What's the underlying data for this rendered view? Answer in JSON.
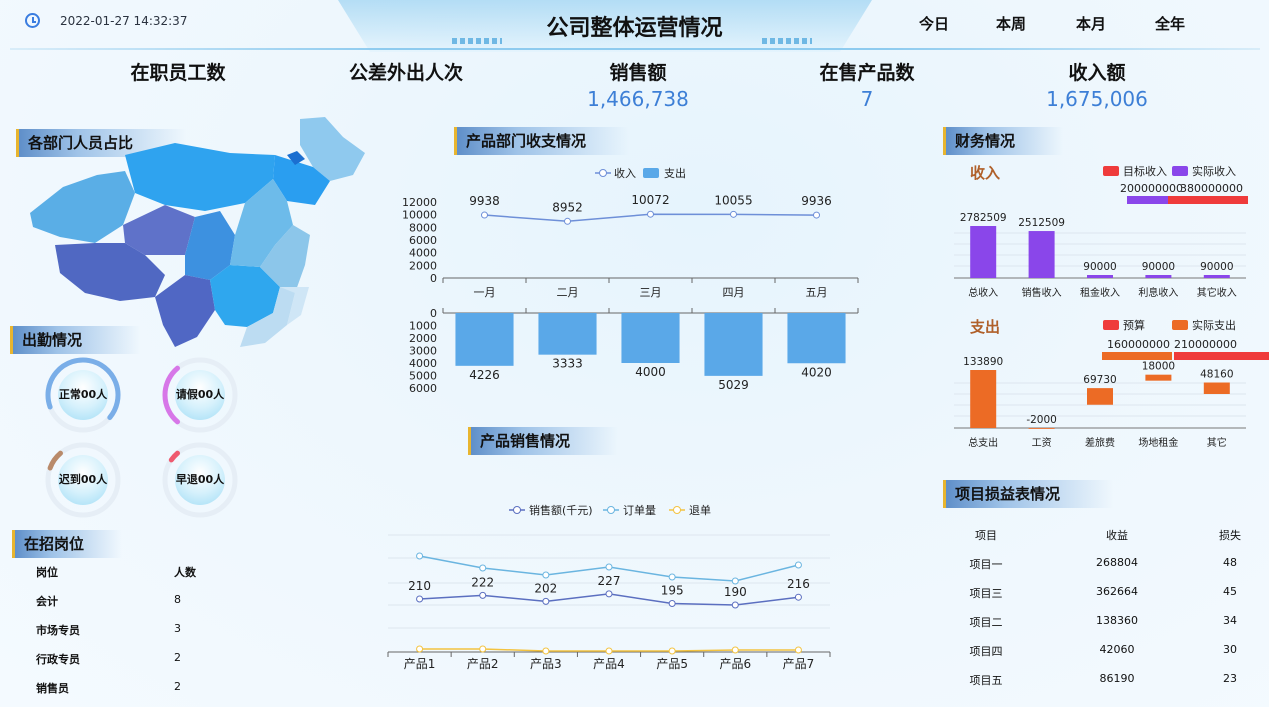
{
  "header": {
    "datetime": "2022-01-27 14:32:37",
    "title": "公司整体运营情况",
    "periods": [
      "今日",
      "本周",
      "本月",
      "全年"
    ]
  },
  "kpis": [
    {
      "label": "在职员工数",
      "value": ""
    },
    {
      "label": "公差外出人次",
      "value": ""
    },
    {
      "label": "销售额",
      "value": "1,466,738"
    },
    {
      "label": "在售产品数",
      "value": "7"
    },
    {
      "label": "收入额",
      "value": "1,675,006"
    }
  ],
  "sections": {
    "dept_ratio": "各部门人员占比",
    "attendance": "出勤情况",
    "recruit": "在招岗位",
    "dept_finance": "产品部门收支情况",
    "product_sales": "产品销售情况",
    "finance": "财务情况",
    "project_pl": "项目损益表情况"
  },
  "colors": {
    "accent": "#3d7fd6",
    "income_line": "#6e8fd8",
    "expense_bar": "#5aa8e8",
    "purple": "#8a46ea",
    "orange": "#ec6b25",
    "red": "#ef3b3b"
  },
  "attendance": [
    {
      "label": "正常00人",
      "color": "#7aaee8"
    },
    {
      "label": "请假00人",
      "color": "#d777e8"
    },
    {
      "label": "迟到00人",
      "color": "#b98a6a"
    },
    {
      "label": "早退00人",
      "color": "#ef5a6f"
    }
  ],
  "recruit": {
    "headers": [
      "岗位",
      "人数"
    ],
    "rows": [
      [
        "会计",
        "8"
      ],
      [
        "市场专员",
        "3"
      ],
      [
        "行政专员",
        "2"
      ],
      [
        "销售员",
        "2"
      ]
    ]
  },
  "chart_data": [
    {
      "id": "dept_income",
      "type": "line",
      "categories": [
        "一月",
        "二月",
        "三月",
        "四月",
        "五月"
      ],
      "series": [
        {
          "name": "收入",
          "values": [
            9938,
            8952,
            10072,
            10055,
            9936
          ]
        }
      ],
      "legend": [
        "收入",
        "支出"
      ],
      "yticks": [
        "12000",
        "10000",
        "8000",
        "6000",
        "4000",
        "2000",
        "0"
      ],
      "ylim": [
        0,
        12000
      ]
    },
    {
      "id": "dept_expense",
      "type": "bar",
      "categories": [
        "一月",
        "二月",
        "三月",
        "四月",
        "五月"
      ],
      "series": [
        {
          "name": "支出",
          "values": [
            4226,
            3333,
            4000,
            5029,
            4020
          ]
        }
      ],
      "yticks": [
        "0",
        "1000",
        "2000",
        "3000",
        "4000",
        "5000",
        "6000"
      ],
      "ylim": [
        0,
        6000
      ],
      "inverted": true
    },
    {
      "id": "product_sales",
      "type": "line",
      "categories": [
        "产品1",
        "产品2",
        "产品3",
        "产品4",
        "产品5",
        "产品6",
        "产品7"
      ],
      "series": [
        {
          "name": "销售额(千元)",
          "values": [
            210,
            222,
            202,
            227,
            195,
            190,
            216
          ]
        },
        {
          "name": "订单量",
          "values": [
            null,
            null,
            null,
            null,
            null,
            null,
            null
          ]
        },
        {
          "name": "退单",
          "values": [
            null,
            null,
            null,
            null,
            null,
            null,
            null
          ]
        }
      ],
      "legend": [
        "销售额(千元)",
        "订单量",
        "退单"
      ]
    },
    {
      "id": "income",
      "type": "bar",
      "title": "收入",
      "categories": [
        "总收入",
        "销售收入",
        "租金收入",
        "利息收入",
        "其它收入"
      ],
      "values": [
        2782509,
        2512509,
        90000,
        90000,
        90000
      ],
      "legend": [
        "目标收入",
        "实际收入"
      ],
      "gauge": {
        "target": "380000000",
        "actual": "200000000"
      }
    },
    {
      "id": "expense",
      "type": "bar",
      "title": "支出",
      "categories": [
        "总支出",
        "工资",
        "差旅费",
        "场地租金",
        "其它"
      ],
      "values": [
        133890,
        -2000,
        69730,
        18000,
        48160
      ],
      "legend": [
        "预算",
        "实际支出"
      ],
      "gauge": {
        "budget": "210000000",
        "actual": "160000000"
      }
    }
  ],
  "project_pl": {
    "headers": [
      "项目",
      "收益",
      "损失"
    ],
    "rows": [
      [
        "项目一",
        "268804",
        "48"
      ],
      [
        "项目三",
        "362664",
        "45"
      ],
      [
        "项目二",
        "138360",
        "34"
      ],
      [
        "项目四",
        "42060",
        "30"
      ],
      [
        "项目五",
        "86190",
        "23"
      ]
    ]
  }
}
